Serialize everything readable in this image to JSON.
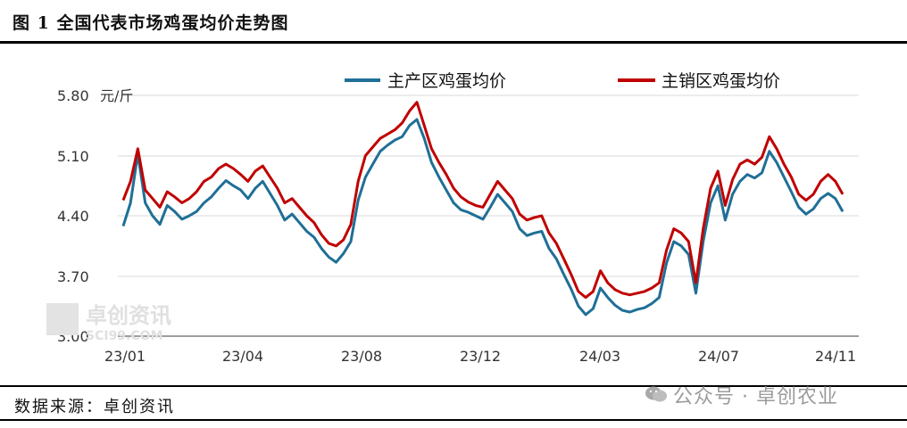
{
  "header": {
    "title": "图 1 全国代表市场鸡蛋均价走势图"
  },
  "footer": {
    "source": "数据来源：卓创资讯",
    "watermark": "公众号 · 卓创农业"
  },
  "chart_watermark": {
    "cn": "卓创资讯",
    "en": "SCI99.COM"
  },
  "colors": {
    "producing": "#1f6f97",
    "selling": "#c00000"
  },
  "chart_data": {
    "type": "line",
    "ylabel": "元/斤",
    "ylim": [
      3.0,
      5.8
    ],
    "yticks": [
      "5.80",
      "5.10",
      "4.40",
      "3.70",
      "3.00"
    ],
    "xticks": [
      "23/01",
      "23/04",
      "23/08",
      "23/12",
      "24/03",
      "24/07",
      "24/11"
    ],
    "legend_position": "top",
    "series": [
      {
        "name": "主产区鸡蛋均价",
        "color": "#1f6f97",
        "values": [
          4.28,
          4.55,
          5.12,
          4.55,
          4.4,
          4.3,
          4.52,
          4.45,
          4.36,
          4.4,
          4.45,
          4.55,
          4.62,
          4.72,
          4.81,
          4.75,
          4.7,
          4.6,
          4.72,
          4.8,
          4.66,
          4.52,
          4.35,
          4.42,
          4.32,
          4.22,
          4.15,
          4.02,
          3.92,
          3.86,
          3.96,
          4.1,
          4.58,
          4.85,
          5.0,
          5.15,
          5.22,
          5.28,
          5.32,
          5.45,
          5.52,
          5.3,
          5.02,
          4.85,
          4.7,
          4.55,
          4.47,
          4.44,
          4.4,
          4.36,
          4.5,
          4.65,
          4.55,
          4.45,
          4.25,
          4.17,
          4.2,
          4.22,
          4.02,
          3.9,
          3.72,
          3.55,
          3.35,
          3.25,
          3.32,
          3.56,
          3.45,
          3.36,
          3.3,
          3.28,
          3.31,
          3.33,
          3.38,
          3.45,
          3.85,
          4.1,
          4.05,
          3.95,
          3.5,
          4.1,
          4.55,
          4.75,
          4.35,
          4.65,
          4.8,
          4.88,
          4.84,
          4.9,
          5.15,
          5.02,
          4.85,
          4.68,
          4.5,
          4.42,
          4.48,
          4.6,
          4.66,
          4.6,
          4.45
        ]
      },
      {
        "name": "主销区鸡蛋均价",
        "color": "#c00000",
        "values": [
          4.58,
          4.8,
          5.18,
          4.7,
          4.6,
          4.5,
          4.68,
          4.62,
          4.55,
          4.6,
          4.68,
          4.8,
          4.85,
          4.95,
          5.0,
          4.95,
          4.88,
          4.8,
          4.92,
          4.98,
          4.85,
          4.72,
          4.55,
          4.6,
          4.5,
          4.4,
          4.32,
          4.18,
          4.08,
          4.05,
          4.12,
          4.3,
          4.8,
          5.1,
          5.2,
          5.3,
          5.35,
          5.4,
          5.48,
          5.62,
          5.72,
          5.45,
          5.18,
          5.02,
          4.88,
          4.72,
          4.62,
          4.56,
          4.52,
          4.5,
          4.65,
          4.8,
          4.7,
          4.6,
          4.42,
          4.35,
          4.38,
          4.4,
          4.2,
          4.08,
          3.9,
          3.72,
          3.52,
          3.45,
          3.52,
          3.76,
          3.62,
          3.54,
          3.5,
          3.48,
          3.5,
          3.52,
          3.56,
          3.62,
          4.0,
          4.25,
          4.2,
          4.1,
          3.62,
          4.25,
          4.72,
          4.92,
          4.52,
          4.82,
          5.0,
          5.05,
          5.0,
          5.08,
          5.32,
          5.18,
          5.0,
          4.85,
          4.65,
          4.58,
          4.65,
          4.8,
          4.88,
          4.8,
          4.65
        ]
      }
    ]
  }
}
